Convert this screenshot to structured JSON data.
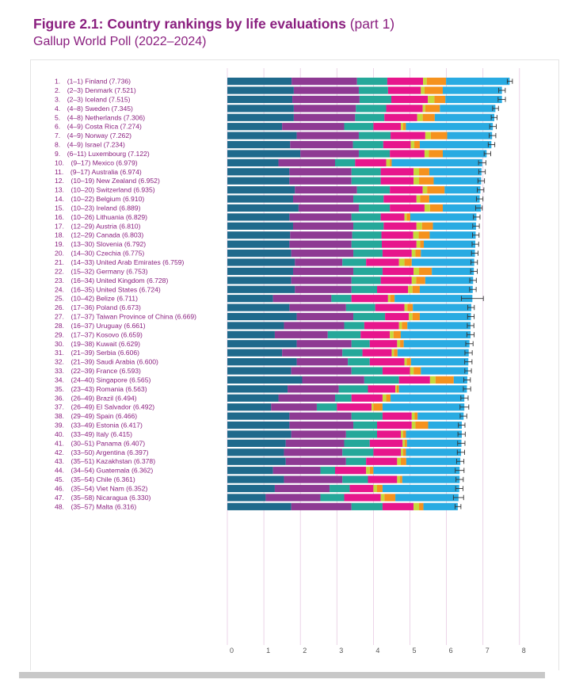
{
  "figure": {
    "number": "Figure 2.1:",
    "title": "Country rankings by life evaluations",
    "part": "(part 1)",
    "subtitle": "Gallup World Poll (2022–2024)"
  },
  "chart_data": {
    "type": "bar",
    "orientation": "horizontal",
    "stacked": true,
    "xlim": [
      0,
      8
    ],
    "x_ticks": [
      "0",
      "1",
      "2",
      "3",
      "4",
      "5",
      "6",
      "7",
      "8"
    ],
    "grid": true,
    "segment_colors": [
      "#1f6a8c",
      "#8e3a93",
      "#25a89a",
      "#e7168c",
      "#c6d93a",
      "#f5921e",
      "#29abe2"
    ],
    "error_bar_color": "#333333",
    "rows": [
      {
        "rank": "1.",
        "range": "(1–1)",
        "country": "Finland",
        "score": "(7.736)",
        "value": 7.736,
        "segments": [
          1.76,
          1.79,
          0.83,
          0.98,
          0.1,
          0.53,
          1.74
        ],
        "ci": 0.07
      },
      {
        "rank": "2.",
        "range": "(2–3)",
        "country": "Denmark",
        "score": "(7.521)",
        "value": 7.521,
        "segments": [
          1.82,
          1.78,
          0.8,
          0.9,
          0.1,
          0.5,
          1.62
        ],
        "ci": 0.09
      },
      {
        "rank": "3.",
        "range": "(2–3)",
        "country": "Iceland",
        "score": "(7.515)",
        "value": 7.515,
        "segments": [
          1.78,
          1.84,
          0.87,
          1.0,
          0.18,
          0.3,
          1.55
        ],
        "ci": 0.1
      },
      {
        "rank": "4.",
        "range": "(4–8)",
        "country": "Sweden",
        "score": "(7.345)",
        "value": 7.345,
        "segments": [
          1.82,
          1.7,
          0.83,
          1.0,
          0.07,
          0.4,
          1.52
        ],
        "ci": 0.08
      },
      {
        "rank": "5.",
        "range": "(4–8)",
        "country": "Netherlands",
        "score": "(7.306)",
        "value": 7.306,
        "segments": [
          1.82,
          1.68,
          0.8,
          0.9,
          0.15,
          0.33,
          1.63
        ],
        "ci": 0.08
      },
      {
        "rank": "6.",
        "range": "(4–9)",
        "country": "Costa Rica",
        "score": "(7.274)",
        "value": 7.274,
        "segments": [
          1.5,
          1.7,
          0.8,
          0.75,
          0.06,
          0.08,
          2.38
        ],
        "ci": 0.09
      },
      {
        "rank": "7.",
        "range": "(4–9)",
        "country": "Norway",
        "score": "(7.262)",
        "value": 7.262,
        "segments": [
          1.9,
          1.7,
          0.87,
          0.95,
          0.15,
          0.45,
          1.23
        ],
        "ci": 0.09
      },
      {
        "rank": "8.",
        "range": "(4–9)",
        "country": "Israel",
        "score": "(7.234)",
        "value": 7.234,
        "segments": [
          1.72,
          1.72,
          0.83,
          0.75,
          0.1,
          0.15,
          1.96
        ],
        "ci": 0.09
      },
      {
        "rank": "9.",
        "range": "(6–11)",
        "country": "Luxembourg",
        "score": "(7.122)",
        "value": 7.122,
        "segments": [
          2.0,
          1.6,
          0.85,
          0.95,
          0.12,
          0.38,
          1.2
        ],
        "ci": 0.09
      },
      {
        "rank": "10.",
        "range": "(9–17)",
        "country": "Mexico",
        "score": "(6.979)",
        "value": 6.979,
        "segments": [
          1.4,
          1.55,
          0.55,
          0.85,
          0.1,
          0.05,
          2.48
        ],
        "ci": 0.1
      },
      {
        "rank": "11.",
        "range": "(9–17)",
        "country": "Australia",
        "score": "(6.974)",
        "value": 6.974,
        "segments": [
          1.7,
          1.7,
          0.8,
          0.9,
          0.15,
          0.28,
          1.43
        ],
        "ci": 0.09
      },
      {
        "rank": "12.",
        "range": "(10–19)",
        "country": "New Zealand",
        "score": "(6.952)",
        "value": 6.952,
        "segments": [
          1.7,
          1.7,
          0.8,
          0.9,
          0.15,
          0.4,
          1.3
        ],
        "ci": 0.09
      },
      {
        "rank": "13.",
        "range": "(10–20)",
        "country": "Switzerland",
        "score": "(6.935)",
        "value": 6.935,
        "segments": [
          1.85,
          1.7,
          0.9,
          0.9,
          0.12,
          0.48,
          0.98
        ],
        "ci": 0.09
      },
      {
        "rank": "14.",
        "range": "(10–22)",
        "country": "Belgium",
        "score": "(6.910)",
        "value": 6.91,
        "segments": [
          1.8,
          1.65,
          0.83,
          0.9,
          0.1,
          0.25,
          1.38
        ],
        "ci": 0.09
      },
      {
        "rank": "15.",
        "range": "(10–23)",
        "country": "Ireland",
        "score": "(6.889)",
        "value": 6.889,
        "segments": [
          1.95,
          1.65,
          0.85,
          0.95,
          0.15,
          0.35,
          1.04
        ],
        "ci": 0.09
      },
      {
        "rank": "16.",
        "range": "(10–26)",
        "country": "Lithuania",
        "score": "(6.829)",
        "value": 6.829,
        "segments": [
          1.7,
          1.7,
          0.8,
          0.65,
          0.06,
          0.1,
          1.81
        ],
        "ci": 0.09
      },
      {
        "rank": "17.",
        "range": "(12–29)",
        "country": "Austria",
        "score": "(6.810)",
        "value": 6.81,
        "segments": [
          1.8,
          1.65,
          0.83,
          0.9,
          0.15,
          0.3,
          1.18
        ],
        "ci": 0.09
      },
      {
        "rank": "18.",
        "range": "(12–29)",
        "country": "Canada",
        "score": "(6.803)",
        "value": 6.803,
        "segments": [
          1.72,
          1.7,
          0.8,
          0.87,
          0.15,
          0.3,
          1.26
        ],
        "ci": 0.09
      },
      {
        "rank": "19.",
        "range": "(13–30)",
        "country": "Slovenia",
        "score": "(6.792)",
        "value": 6.792,
        "segments": [
          1.7,
          1.7,
          0.83,
          0.95,
          0.1,
          0.1,
          1.41
        ],
        "ci": 0.09
      },
      {
        "rank": "20.",
        "range": "(14–30)",
        "country": "Czechia",
        "score": "(6.775)",
        "value": 6.775,
        "segments": [
          1.75,
          1.7,
          0.8,
          0.8,
          0.1,
          0.15,
          1.48
        ],
        "ci": 0.09
      },
      {
        "rank": "21.",
        "range": "(14–33)",
        "country": "United Arab Emirates",
        "score": "(6.759)",
        "value": 6.759,
        "segments": [
          1.85,
          1.3,
          0.65,
          0.9,
          0.15,
          0.2,
          1.71
        ],
        "ci": 0.09
      },
      {
        "rank": "22.",
        "range": "(15–32)",
        "country": "Germany",
        "score": "(6.753)",
        "value": 6.753,
        "segments": [
          1.8,
          1.65,
          0.8,
          0.85,
          0.15,
          0.35,
          1.15
        ],
        "ci": 0.09
      },
      {
        "rank": "23.",
        "range": "(16–34)",
        "country": "United Kingdom",
        "score": "(6.728)",
        "value": 6.728,
        "segments": [
          1.75,
          1.65,
          0.8,
          0.85,
          0.12,
          0.25,
          1.31
        ],
        "ci": 0.09
      },
      {
        "rank": "24.",
        "range": "(16–35)",
        "country": "United States",
        "score": "(6.724)",
        "value": 6.724,
        "segments": [
          1.85,
          1.55,
          0.7,
          0.85,
          0.12,
          0.2,
          1.45
        ],
        "ci": 0.09
      },
      {
        "rank": "25.",
        "range": "(10–42)",
        "country": "Belize",
        "score": "(6.711)",
        "value": 6.711,
        "segments": [
          1.25,
          1.6,
          0.55,
          1.0,
          0.06,
          0.12,
          2.13
        ],
        "ci": 0.3
      },
      {
        "rank": "26.",
        "range": "(17–36)",
        "country": "Poland",
        "score": "(6.673)",
        "value": 6.673,
        "segments": [
          1.7,
          1.55,
          0.8,
          0.8,
          0.08,
          0.15,
          1.6
        ],
        "ci": 0.09
      },
      {
        "rank": "27.",
        "range": "(17–37)",
        "country": "Taiwan Province of China",
        "score": "(6.669)",
        "value": 6.669,
        "segments": [
          1.9,
          1.55,
          0.87,
          0.65,
          0.1,
          0.2,
          1.4
        ],
        "ci": 0.09
      },
      {
        "rank": "28.",
        "range": "(16–37)",
        "country": "Uruguay",
        "score": "(6.661)",
        "value": 6.661,
        "segments": [
          1.55,
          1.65,
          0.55,
          0.95,
          0.08,
          0.15,
          1.73
        ],
        "ci": 0.09
      },
      {
        "rank": "29.",
        "range": "(17–37)",
        "country": "Kosovo",
        "score": "(6.659)",
        "value": 6.659,
        "segments": [
          1.3,
          1.45,
          0.9,
          0.8,
          0.1,
          0.2,
          1.91
        ],
        "ci": 0.1
      },
      {
        "rank": "30.",
        "range": "(19–38)",
        "country": "Kuwait",
        "score": "(6.629)",
        "value": 6.629,
        "segments": [
          1.9,
          1.5,
          0.5,
          0.75,
          0.08,
          0.1,
          1.8
        ],
        "ci": 0.1
      },
      {
        "rank": "31.",
        "range": "(21–39)",
        "country": "Serbia",
        "score": "(6.606)",
        "value": 6.606,
        "segments": [
          1.5,
          1.65,
          0.55,
          0.8,
          0.06,
          0.1,
          1.95
        ],
        "ci": 0.1
      },
      {
        "rank": "32.",
        "range": "(21–39)",
        "country": "Saudi Arabia",
        "score": "(6.600)",
        "value": 6.6,
        "segments": [
          1.9,
          1.4,
          0.6,
          0.95,
          0.06,
          0.12,
          1.57
        ],
        "ci": 0.1
      },
      {
        "rank": "33.",
        "range": "(22–39)",
        "country": "France",
        "score": "(6.593)",
        "value": 6.593,
        "segments": [
          1.75,
          1.65,
          0.85,
          0.75,
          0.1,
          0.2,
          1.29
        ],
        "ci": 0.09
      },
      {
        "rank": "34.",
        "range": "(24–40)",
        "country": "Singapore",
        "score": "(6.565)",
        "value": 6.565,
        "segments": [
          2.05,
          1.7,
          0.95,
          0.85,
          0.15,
          0.5,
          0.37
        ],
        "ci": 0.09
      },
      {
        "rank": "35.",
        "range": "(23–43)",
        "country": "Romania",
        "score": "(6.563)",
        "value": 6.563,
        "segments": [
          1.65,
          1.4,
          0.8,
          0.75,
          0.04,
          0.06,
          1.86
        ],
        "ci": 0.1
      },
      {
        "rank": "36.",
        "range": "(26–49)",
        "country": "Brazil",
        "score": "(6.494)",
        "value": 6.494,
        "segments": [
          1.4,
          1.55,
          0.45,
          0.85,
          0.1,
          0.12,
          2.02
        ],
        "ci": 0.1
      },
      {
        "rank": "37.",
        "range": "(26–49)",
        "country": "El Salvador",
        "score": "(6.492)",
        "value": 6.492,
        "segments": [
          1.2,
          1.25,
          0.55,
          0.95,
          0.05,
          0.25,
          2.24
        ],
        "ci": 0.12
      },
      {
        "rank": "38.",
        "range": "(29–49)",
        "country": "Spain",
        "score": "(6.466)",
        "value": 6.466,
        "segments": [
          1.7,
          1.7,
          0.85,
          0.8,
          0.08,
          0.08,
          1.26
        ],
        "ci": 0.09
      },
      {
        "rank": "39.",
        "range": "(33–49)",
        "country": "Estonia",
        "score": "(6.417)",
        "value": 6.417,
        "segments": [
          1.7,
          1.75,
          0.65,
          0.95,
          0.1,
          0.35,
          0.92
        ],
        "ci": 0.09
      },
      {
        "rank": "40.",
        "range": "(33–49)",
        "country": "Italy",
        "score": "(6.415)",
        "value": 6.415,
        "segments": [
          1.75,
          1.5,
          0.85,
          0.65,
          0.06,
          0.08,
          1.53
        ],
        "ci": 0.1
      },
      {
        "rank": "41.",
        "range": "(30–51)",
        "country": "Panama",
        "score": "(6.407)",
        "value": 6.407,
        "segments": [
          1.6,
          1.6,
          0.7,
          0.9,
          0.06,
          0.06,
          1.49
        ],
        "ci": 0.1
      },
      {
        "rank": "42.",
        "range": "(33–50)",
        "country": "Argentina",
        "score": "(6.397)",
        "value": 6.397,
        "segments": [
          1.55,
          1.6,
          0.85,
          0.75,
          0.06,
          0.08,
          1.51
        ],
        "ci": 0.1
      },
      {
        "rank": "43.",
        "range": "(35–51)",
        "country": "Kazakhstan",
        "score": "(6.378)",
        "value": 6.378,
        "segments": [
          1.6,
          1.65,
          0.55,
          0.85,
          0.1,
          0.15,
          1.48
        ],
        "ci": 0.1
      },
      {
        "rank": "44.",
        "range": "(34–54)",
        "country": "Guatemala",
        "score": "(6.362)",
        "value": 6.362,
        "segments": [
          1.25,
          1.3,
          0.4,
          0.85,
          0.1,
          0.1,
          2.36
        ],
        "ci": 0.12
      },
      {
        "rank": "45.",
        "range": "(35–54)",
        "country": "Chile",
        "score": "(6.361)",
        "value": 6.361,
        "segments": [
          1.55,
          1.6,
          0.7,
          0.8,
          0.08,
          0.06,
          1.57
        ],
        "ci": 0.1
      },
      {
        "rank": "46.",
        "range": "(35–54)",
        "country": "Viet Nam",
        "score": "(6.352)",
        "value": 6.352,
        "segments": [
          1.3,
          1.5,
          0.55,
          0.65,
          0.1,
          0.15,
          2.1
        ],
        "ci": 0.1
      },
      {
        "rank": "47.",
        "range": "(35–58)",
        "country": "Nicaragua",
        "score": "(6.330)",
        "value": 6.33,
        "segments": [
          1.05,
          1.5,
          0.65,
          1.0,
          0.1,
          0.3,
          1.73
        ],
        "ci": 0.14
      },
      {
        "rank": "48.",
        "range": "(35–57)",
        "country": "Malta",
        "score": "(6.316)",
        "value": 6.316,
        "segments": [
          1.75,
          1.65,
          0.85,
          0.85,
          0.15,
          0.12,
          0.94
        ],
        "ci": 0.08
      }
    ]
  }
}
